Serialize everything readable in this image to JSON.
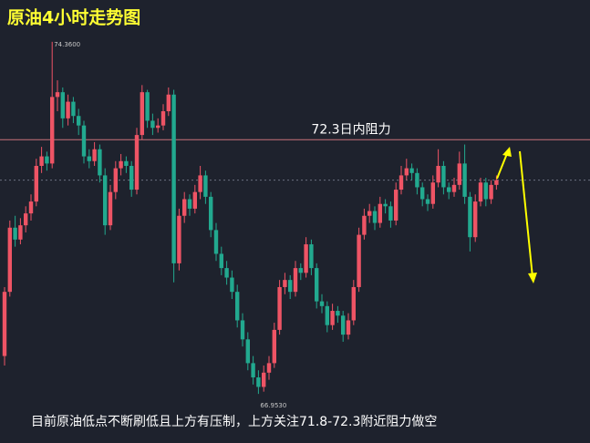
{
  "chart_data": {
    "type": "candlestick",
    "title": "原油4小时走势图",
    "caption": "目前原油低点不断刷低且上方有压制，上方关注71.8-72.3附近阻力做空",
    "up_color": "#ee5465",
    "down_color": "#22a98f",
    "background": "#1e222d",
    "ylim": [
      65.92,
      75.24
    ],
    "resistance": {
      "value": 72.3,
      "label": "72.3日内阻力",
      "color": "#c9727b"
    },
    "price_line": 71.45,
    "extremes": [
      {
        "value": 74.36,
        "label": "74.3600"
      },
      {
        "value": 66.953,
        "label": "66.9530"
      }
    ],
    "candles": [
      [
        67.75,
        69.2,
        67.55,
        69.1
      ],
      [
        69.1,
        70.6,
        69.0,
        70.45
      ],
      [
        70.45,
        70.7,
        70.05,
        70.2
      ],
      [
        70.2,
        70.65,
        70.1,
        70.5
      ],
      [
        70.5,
        70.9,
        70.35,
        70.75
      ],
      [
        70.75,
        71.15,
        70.6,
        71.0
      ],
      [
        71.0,
        71.9,
        70.9,
        71.75
      ],
      [
        71.75,
        72.15,
        71.6,
        71.95
      ],
      [
        71.95,
        72.05,
        71.65,
        71.8
      ],
      [
        71.8,
        74.36,
        71.7,
        73.2
      ],
      [
        73.2,
        73.55,
        72.9,
        73.3
      ],
      [
        73.3,
        73.4,
        72.55,
        72.75
      ],
      [
        72.75,
        73.25,
        72.6,
        73.1
      ],
      [
        73.1,
        73.2,
        72.65,
        72.8
      ],
      [
        72.8,
        72.95,
        72.4,
        72.6
      ],
      [
        72.6,
        72.7,
        71.8,
        71.95
      ],
      [
        71.95,
        72.1,
        71.7,
        71.85
      ],
      [
        71.85,
        72.25,
        71.75,
        72.1
      ],
      [
        72.1,
        72.2,
        71.4,
        71.55
      ],
      [
        71.55,
        71.7,
        70.3,
        70.5
      ],
      [
        70.5,
        71.35,
        70.4,
        71.2
      ],
      [
        71.2,
        71.85,
        71.05,
        71.7
      ],
      [
        71.7,
        72.0,
        71.55,
        71.85
      ],
      [
        71.85,
        71.95,
        71.6,
        71.75
      ],
      [
        71.75,
        71.85,
        71.1,
        71.25
      ],
      [
        71.25,
        72.55,
        71.15,
        72.4
      ],
      [
        72.4,
        73.45,
        72.3,
        73.3
      ],
      [
        73.3,
        73.35,
        72.55,
        72.7
      ],
      [
        72.7,
        72.85,
        72.4,
        72.55
      ],
      [
        72.55,
        72.75,
        72.45,
        72.6
      ],
      [
        72.6,
        73.05,
        72.5,
        72.9
      ],
      [
        72.9,
        73.4,
        72.8,
        73.25
      ],
      [
        73.25,
        73.35,
        69.3,
        69.7
      ],
      [
        69.7,
        70.85,
        69.55,
        70.7
      ],
      [
        70.7,
        71.2,
        70.55,
        71.05
      ],
      [
        71.05,
        71.15,
        70.7,
        70.85
      ],
      [
        70.85,
        71.35,
        70.75,
        71.2
      ],
      [
        71.2,
        71.75,
        71.05,
        71.55
      ],
      [
        71.55,
        71.65,
        70.95,
        71.1
      ],
      [
        71.1,
        71.2,
        70.25,
        70.4
      ],
      [
        70.4,
        70.55,
        69.75,
        69.9
      ],
      [
        69.9,
        70.05,
        69.45,
        69.6
      ],
      [
        69.6,
        69.75,
        69.25,
        69.4
      ],
      [
        69.4,
        69.55,
        68.95,
        69.1
      ],
      [
        69.1,
        69.25,
        68.35,
        68.5
      ],
      [
        68.5,
        68.65,
        67.95,
        68.1
      ],
      [
        68.1,
        68.25,
        67.45,
        67.6
      ],
      [
        67.6,
        67.75,
        67.15,
        67.3
      ],
      [
        67.3,
        67.45,
        66.953,
        67.1
      ],
      [
        67.1,
        67.55,
        67.0,
        67.4
      ],
      [
        67.4,
        67.75,
        67.25,
        67.6
      ],
      [
        67.6,
        68.45,
        67.5,
        68.3
      ],
      [
        68.3,
        69.35,
        68.2,
        69.2
      ],
      [
        69.2,
        69.5,
        69.05,
        69.35
      ],
      [
        69.35,
        69.45,
        68.95,
        69.1
      ],
      [
        69.1,
        69.75,
        69.0,
        69.6
      ],
      [
        69.6,
        69.7,
        69.35,
        69.5
      ],
      [
        69.5,
        70.25,
        69.4,
        70.1
      ],
      [
        70.1,
        70.2,
        69.45,
        69.6
      ],
      [
        69.6,
        69.7,
        68.75,
        68.9
      ],
      [
        68.9,
        69.05,
        68.65,
        68.8
      ],
      [
        68.8,
        68.9,
        68.25,
        68.4
      ],
      [
        68.4,
        68.85,
        68.3,
        68.7
      ],
      [
        68.7,
        68.8,
        68.45,
        68.6
      ],
      [
        68.6,
        68.7,
        68.05,
        68.2
      ],
      [
        68.2,
        68.65,
        68.1,
        68.5
      ],
      [
        68.5,
        69.35,
        68.4,
        69.2
      ],
      [
        69.2,
        70.45,
        69.1,
        70.3
      ],
      [
        70.3,
        70.85,
        70.2,
        70.7
      ],
      [
        70.7,
        70.95,
        70.55,
        70.8
      ],
      [
        70.8,
        70.9,
        70.4,
        70.55
      ],
      [
        70.55,
        71.1,
        70.45,
        70.95
      ],
      [
        70.95,
        71.05,
        70.75,
        70.9
      ],
      [
        70.9,
        71.0,
        70.45,
        70.6
      ],
      [
        70.6,
        71.4,
        70.5,
        71.25
      ],
      [
        71.25,
        71.75,
        71.15,
        71.55
      ],
      [
        71.55,
        71.9,
        71.45,
        71.7
      ],
      [
        71.7,
        71.8,
        71.45,
        71.6
      ],
      [
        71.6,
        71.7,
        71.15,
        71.3
      ],
      [
        71.3,
        71.4,
        70.9,
        71.05
      ],
      [
        71.05,
        71.15,
        70.8,
        70.95
      ],
      [
        70.95,
        71.55,
        70.85,
        71.4
      ],
      [
        71.4,
        72.1,
        71.3,
        71.75
      ],
      [
        71.75,
        71.85,
        71.15,
        71.3
      ],
      [
        71.3,
        71.4,
        71.05,
        71.2
      ],
      [
        71.2,
        71.5,
        71.1,
        71.35
      ],
      [
        71.35,
        72.05,
        71.25,
        71.8
      ],
      [
        71.8,
        72.2,
        70.95,
        71.1
      ],
      [
        71.1,
        71.2,
        69.95,
        70.25
      ],
      [
        70.25,
        71.15,
        70.15,
        71.0
      ],
      [
        71.0,
        71.5,
        70.9,
        71.4
      ],
      [
        71.4,
        71.5,
        70.9,
        71.05
      ],
      [
        71.05,
        71.45,
        70.95,
        71.35
      ],
      [
        71.35,
        71.55,
        71.25,
        71.45
      ]
    ]
  }
}
